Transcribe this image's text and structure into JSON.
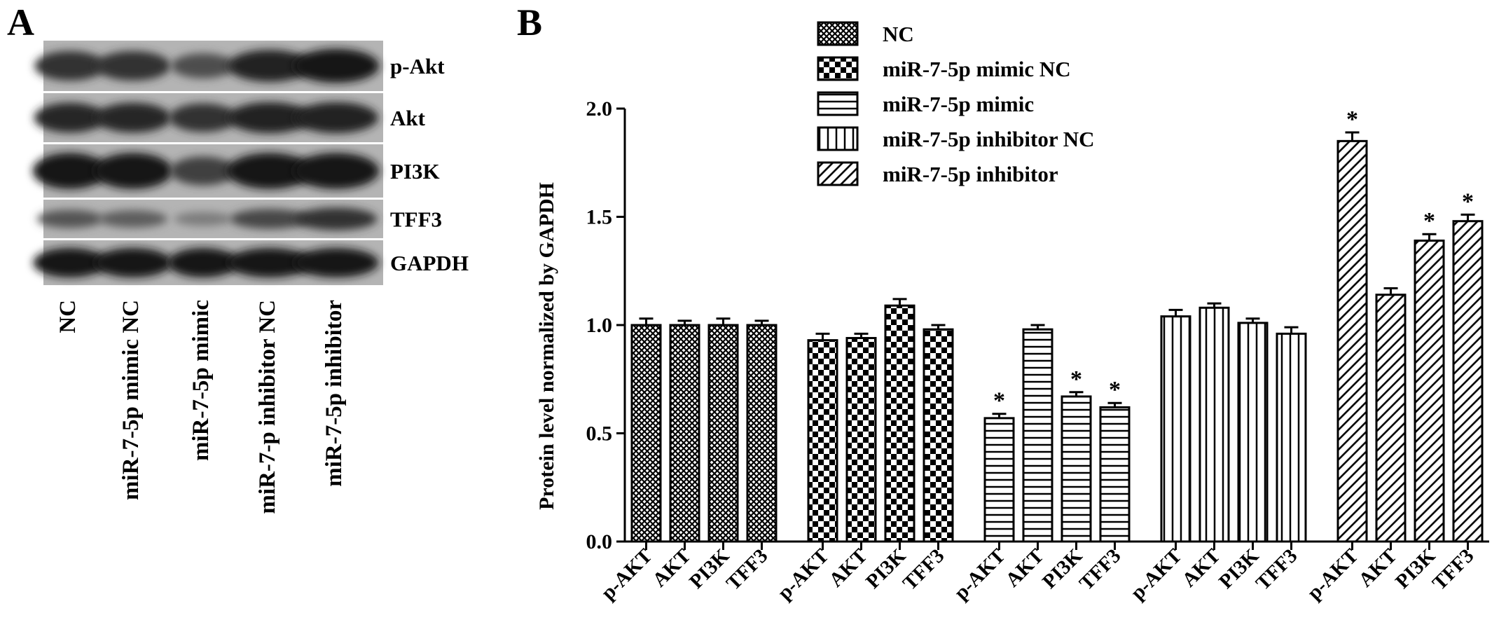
{
  "panel_a": {
    "label": "A",
    "bands": [
      "p-Akt",
      "Akt",
      "PI3K",
      "TFF3",
      "GAPDH"
    ],
    "lanes": [
      "NC",
      "miR-7-5p mimic NC",
      "miR-7-5p mimic",
      "miR-7-p inhibitor NC",
      "miR-7-5p inhibitor"
    ],
    "band_intensity": {
      "p-Akt": [
        0.75,
        0.75,
        0.55,
        0.85,
        0.95
      ],
      "Akt": [
        0.8,
        0.8,
        0.75,
        0.85,
        0.85
      ],
      "PI3K": [
        0.95,
        0.95,
        0.65,
        0.95,
        0.95
      ],
      "TFF3": [
        0.5,
        0.45,
        0.25,
        0.6,
        0.75
      ],
      "GAPDH": [
        0.9,
        0.9,
        0.9,
        0.9,
        0.9
      ]
    }
  },
  "chart_data": {
    "type": "bar",
    "panel_label": "B",
    "ylabel": "Protein level normalized by GAPDH",
    "ylim": [
      0,
      2.0
    ],
    "yticks": [
      "0.0",
      "0.5",
      "1.0",
      "1.5",
      "2.0"
    ],
    "categories": [
      "p-AKT",
      "AKT",
      "PI3K",
      "TFF3"
    ],
    "significance_mark": "*",
    "legend_position": "top",
    "series": [
      {
        "name": "NC",
        "pattern": "crosshatch",
        "values": [
          1.0,
          1.0,
          1.0,
          1.0
        ],
        "errors": [
          0.03,
          0.02,
          0.03,
          0.02
        ],
        "significant": [
          false,
          false,
          false,
          false
        ]
      },
      {
        "name": "miR-7-5p mimic NC",
        "pattern": "checker",
        "values": [
          0.93,
          0.94,
          1.09,
          0.98
        ],
        "errors": [
          0.03,
          0.02,
          0.03,
          0.02
        ],
        "significant": [
          false,
          false,
          false,
          false
        ]
      },
      {
        "name": "miR-7-5p mimic",
        "pattern": "horizontal",
        "values": [
          0.57,
          0.98,
          0.67,
          0.62
        ],
        "errors": [
          0.02,
          0.02,
          0.02,
          0.02
        ],
        "significant": [
          true,
          false,
          true,
          true
        ]
      },
      {
        "name": "miR-7-5p inhibitor NC",
        "pattern": "vertical",
        "values": [
          1.04,
          1.08,
          1.01,
          0.96
        ],
        "errors": [
          0.03,
          0.02,
          0.02,
          0.03
        ],
        "significant": [
          false,
          false,
          false,
          false
        ]
      },
      {
        "name": "miR-7-5p inhibitor",
        "pattern": "diagonal",
        "values": [
          1.85,
          1.14,
          1.39,
          1.48
        ],
        "errors": [
          0.04,
          0.03,
          0.03,
          0.03
        ],
        "significant": [
          true,
          false,
          true,
          true
        ]
      }
    ]
  }
}
